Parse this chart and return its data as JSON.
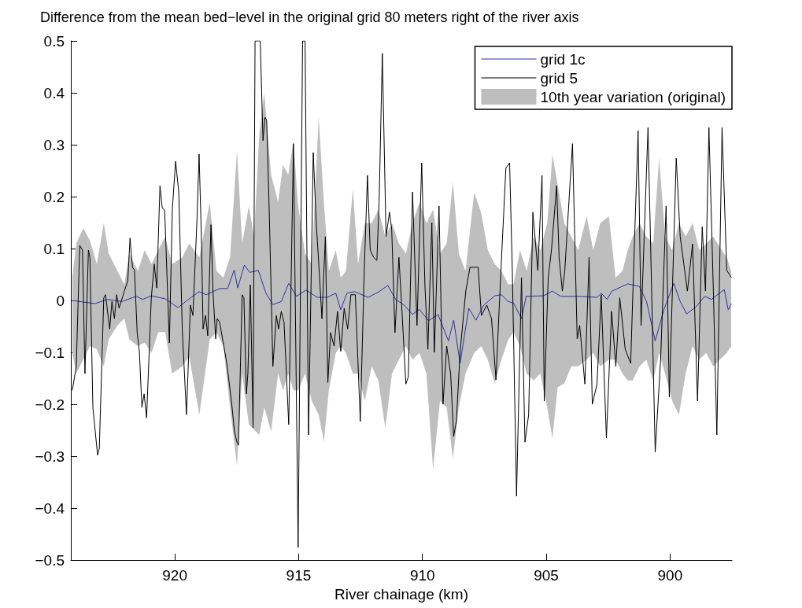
{
  "chart_data": {
    "type": "line",
    "title": "Difference from the mean bed−level in the original grid 80 meters right of the river axis",
    "xlabel": "River chainage (km)",
    "xlim": [
      924.2,
      897.5
    ],
    "xticks": [
      920,
      915,
      910,
      905,
      900
    ],
    "ylim": [
      -0.5,
      0.5
    ],
    "yticks": [
      {
        "value": -0.5,
        "label": "−0.5"
      },
      {
        "value": -0.4,
        "label": "−0.4"
      },
      {
        "value": -0.3,
        "label": "−0.3"
      },
      {
        "value": -0.2,
        "label": "−0.2"
      },
      {
        "value": -0.1,
        "label": "−0.1"
      },
      0,
      0.1,
      0.2,
      0.3,
      0.4,
      0.5
    ],
    "legend": "top right",
    "marker": "none",
    "series": [
      {
        "name": "grid 1c",
        "color": "#3030a0",
        "x": [
          924.14,
          923.71,
          923.22,
          922.73,
          922.13,
          921.56,
          921.29,
          920.95,
          920.38,
          919.87,
          919.56,
          919.02,
          918.73,
          918.19,
          917.87,
          917.6,
          917.46,
          917.19,
          916.97,
          916.63,
          916.32,
          916.04,
          915.7,
          915.4,
          915.21,
          915.09,
          914.7,
          914.25,
          913.84,
          913.5,
          913.3,
          913.05,
          912.74,
          912.19,
          911.75,
          911.4,
          911.08,
          910.74,
          910.4,
          910.13,
          909.75,
          909.37,
          908.95,
          908.74,
          908.48,
          908.13,
          907.84,
          907.52,
          907.08,
          906.81,
          906.54,
          906.32,
          906.0,
          905.81,
          905.1,
          904.76,
          904.41,
          903.71,
          902.95,
          902.78,
          902.54,
          902.35,
          901.71,
          901.24,
          900.95,
          900.6,
          900.25,
          899.85,
          899.59,
          899.33,
          898.95,
          898.6,
          898.33,
          897.81,
          897.65,
          897.52
        ],
        "values": [
          0.0,
          -0.003,
          -0.006,
          0.002,
          -0.002,
          0.008,
          0.002,
          0.009,
          0.003,
          -0.014,
          -0.002,
          0.017,
          0.011,
          0.023,
          0.023,
          0.059,
          0.024,
          0.068,
          0.054,
          0.058,
          0.014,
          -0.008,
          -0.002,
          0.033,
          0.018,
          0.008,
          0.02,
          0.006,
          0.006,
          0.014,
          -0.018,
          0.014,
          0.017,
          0.006,
          0.017,
          0.029,
          0.002,
          -0.009,
          -0.027,
          -0.017,
          -0.039,
          -0.027,
          -0.078,
          -0.038,
          -0.121,
          -0.015,
          -0.038,
          -0.009,
          0.009,
          0.011,
          -0.002,
          -0.005,
          -0.035,
          0.008,
          0.009,
          0.018,
          0.008,
          0.008,
          0.006,
          0.014,
          0.002,
          0.018,
          0.032,
          0.027,
          -0.002,
          -0.078,
          -0.018,
          0.033,
          -0.002,
          -0.026,
          -0.012,
          0.008,
          0.002,
          0.021,
          -0.018,
          -0.006
        ]
      },
      {
        "name": "grid 5",
        "color": "#000000",
        "x": [
          924.14,
          923.98,
          923.84,
          923.73,
          923.63,
          923.49,
          923.43,
          923.31,
          923.12,
          923.05,
          922.87,
          922.8,
          922.63,
          922.54,
          922.44,
          922.35,
          922.25,
          922.04,
          921.9,
          921.81,
          921.71,
          921.63,
          921.52,
          921.43,
          921.33,
          921.24,
          921.14,
          920.95,
          920.83,
          920.73,
          920.6,
          920.51,
          920.41,
          920.22,
          920.1,
          919.97,
          919.84,
          919.7,
          919.53,
          919.37,
          919.27,
          919.11,
          919.02,
          918.92,
          918.86,
          918.76,
          918.67,
          918.54,
          918.46,
          918.35,
          918.29,
          918.19,
          917.9,
          917.7,
          917.59,
          917.49,
          917.43,
          917.28,
          917.21,
          917.11,
          917.05,
          916.95,
          916.84,
          916.76,
          916.55,
          916.44,
          916.36,
          916.29,
          916.19,
          916.04,
          915.9,
          915.81,
          915.7,
          915.59,
          915.4,
          915.21,
          915.02,
          914.84,
          914.74,
          914.6,
          914.41,
          914.29,
          914.16,
          914.06,
          913.92,
          913.82,
          913.71,
          913.57,
          913.43,
          913.3,
          913.16,
          913.02,
          912.89,
          912.71,
          912.51,
          912.35,
          912.22,
          912.11,
          911.97,
          911.84,
          911.75,
          911.62,
          911.47,
          911.33,
          911.24,
          911.11,
          910.95,
          910.81,
          910.67,
          910.57,
          910.4,
          910.22,
          910.03,
          909.9,
          909.78,
          909.62,
          909.52,
          909.33,
          909.17,
          909.02,
          908.86,
          908.74,
          908.63,
          908.48,
          908.25,
          908.08,
          907.9,
          907.75,
          907.62,
          907.4,
          907.21,
          907.03,
          906.92,
          906.79,
          906.63,
          906.48,
          906.37,
          906.2,
          906.0,
          905.86,
          905.71,
          905.54,
          905.34,
          905.17,
          905.08,
          904.92,
          904.79,
          904.58,
          904.48,
          904.35,
          904.25,
          904.06,
          903.94,
          903.75,
          903.65,
          903.44,
          903.27,
          903.14,
          902.95,
          902.78,
          902.57,
          902.36,
          902.19,
          902.03,
          901.81,
          901.59,
          901.43,
          901.29,
          901.17,
          900.89,
          900.6,
          900.38,
          900.16,
          900.03,
          899.75,
          899.59,
          899.41,
          899.3,
          899.09,
          898.89,
          898.7,
          898.57,
          898.43,
          898.25,
          898.11,
          897.9,
          897.71,
          897.52
        ],
        "values": [
          -0.173,
          -0.127,
          0.106,
          0.097,
          -0.141,
          0.097,
          0.083,
          -0.206,
          -0.298,
          -0.285,
          0.005,
          0.011,
          -0.055,
          -0.002,
          -0.035,
          0.011,
          -0.015,
          0.018,
          0.038,
          0.12,
          0.064,
          0.058,
          -0.062,
          -0.1,
          -0.206,
          -0.18,
          -0.226,
          0.005,
          0.07,
          0.024,
          0.221,
          0.179,
          0.173,
          -0.082,
          0.176,
          0.268,
          0.209,
          -0.055,
          -0.22,
          -0.009,
          -0.029,
          0.15,
          0.282,
          0.109,
          -0.055,
          -0.029,
          -0.068,
          0.146,
          0.018,
          -0.074,
          -0.035,
          -0.042,
          -0.121,
          -0.2,
          -0.253,
          -0.273,
          -0.279,
          0.011,
          0.005,
          -0.18,
          -0.141,
          0.03,
          -0.245,
          0.5,
          0.5,
          0.308,
          0.353,
          0.347,
          0.176,
          -0.127,
          -0.029,
          -0.055,
          -0.021,
          -0.042,
          -0.239,
          0.302,
          -0.476,
          0.5,
          0.5,
          -0.259,
          0.285,
          0.15,
          0.05,
          -0.035,
          0.123,
          -0.158,
          -0.062,
          -0.088,
          -0.021,
          -0.098,
          -0.015,
          -0.055,
          0.011,
          0.011,
          -0.233,
          0.058,
          0.241,
          0.097,
          0.083,
          0.077,
          0.189,
          0.476,
          0.123,
          0.17,
          0.136,
          -0.062,
          0.083,
          -0.035,
          -0.161,
          -0.147,
          0.209,
          -0.048,
          0.265,
          0.03,
          -0.094,
          0.15,
          -0.1,
          0.182,
          -0.2,
          -0.088,
          -0.141,
          -0.262,
          -0.233,
          -0.1,
          0.018,
          0.064,
          0.064,
          0.064,
          -0.029,
          -0.009,
          -0.035,
          -0.153,
          -0.035,
          0.097,
          0.255,
          0.265,
          0.058,
          -0.377,
          0.044,
          -0.273,
          -0.22,
          0.17,
          0.058,
          0.241,
          -0.194,
          0.044,
          0.097,
          0.221,
          0.083,
          0.018,
          0.058,
          0.209,
          0.302,
          -0.074,
          -0.048,
          -0.161,
          0.083,
          -0.2,
          -0.161,
          0.011,
          -0.265,
          -0.021,
          -0.127,
          0.005,
          -0.094,
          -0.121,
          0.123,
          0.327,
          -0.048,
          0.333,
          -0.292,
          -0.114,
          0.182,
          -0.186,
          0.274,
          0.123,
          0.058,
          0.018,
          0.109,
          -0.194,
          0.142,
          0.018,
          0.333,
          0.018,
          -0.259,
          0.333,
          0.058,
          0.044
        ]
      },
      {
        "name": "10th year variation (original)",
        "type": "area",
        "color": "#bebebf",
        "x": [
          924.14,
          923.98,
          923.7,
          923.43,
          923.15,
          922.87,
          922.67,
          922.32,
          922.04,
          921.84,
          921.49,
          921.22,
          920.94,
          920.67,
          920.39,
          920.11,
          919.7,
          919.42,
          919.01,
          918.59,
          918.32,
          918.04,
          917.77,
          917.49,
          917.28,
          917.01,
          916.8,
          916.59,
          916.39,
          916.11,
          915.83,
          915.63,
          915.42,
          915.21,
          915.02,
          914.74,
          914.47,
          914.19,
          913.98,
          913.78,
          913.5,
          913.3,
          913.09,
          912.81,
          912.6,
          912.33,
          912.05,
          911.78,
          911.5,
          911.23,
          910.95,
          910.67,
          910.4,
          910.12,
          909.84,
          909.57,
          909.29,
          909.02,
          908.77,
          908.53,
          908.26,
          907.91,
          907.63,
          907.36,
          907.08,
          906.81,
          906.53,
          906.32,
          906.06,
          905.79,
          905.51,
          905.24,
          904.96,
          904.75,
          904.27,
          903.99,
          903.71,
          903.37,
          903.1,
          902.82,
          902.47,
          902.2,
          901.92,
          901.71,
          901.51,
          901.23,
          900.96,
          900.68,
          900.44,
          900.2,
          899.92,
          899.64,
          899.37,
          899.09,
          898.82,
          898.54,
          898.26,
          897.99,
          897.71,
          897.53
        ],
        "values": [
          0.044,
          0.11,
          0.139,
          0.116,
          0.07,
          0.149,
          0.09,
          0.057,
          0.031,
          0.09,
          0.057,
          0.097,
          0.07,
          0.097,
          0.123,
          0.07,
          0.083,
          0.11,
          0.083,
          0.189,
          0.057,
          0.044,
          0.083,
          0.288,
          0.11,
          0.182,
          0.123,
          0.32,
          0.4,
          0.242,
          0.189,
          0.261,
          0.242,
          0.307,
          0.182,
          0.09,
          0.07,
          0.353,
          0.189,
          0.057,
          0.097,
          0.044,
          0.057,
          0.215,
          0.07,
          0.149,
          0.149,
          0.175,
          0.123,
          0.149,
          0.11,
          0.09,
          0.149,
          0.189,
          0.149,
          0.175,
          0.09,
          0.11,
          0.228,
          0.09,
          0.057,
          0.208,
          0.169,
          0.097,
          0.07,
          0.057,
          0.031,
          0.031,
          0.097,
          0.057,
          0.123,
          0.097,
          0.149,
          0.281,
          0.149,
          0.123,
          0.097,
          0.162,
          0.097,
          0.149,
          0.162,
          0.044,
          0.057,
          0.097,
          0.123,
          0.149,
          0.123,
          0.11,
          0.275,
          0.123,
          0.097,
          0.149,
          0.123,
          0.149,
          0.097,
          0.11,
          0.123,
          0.103,
          0.083,
          0.057
        ]
      },
      {
        "type": "area",
        "color": "#bebebf",
        "x": [
          924.14,
          923.98,
          923.7,
          923.43,
          923.15,
          922.87,
          922.67,
          922.32,
          922.04,
          921.84,
          921.49,
          921.22,
          920.94,
          920.67,
          920.39,
          920.11,
          919.7,
          919.42,
          919.01,
          918.59,
          918.32,
          918.04,
          917.77,
          917.49,
          917.28,
          917.01,
          916.59,
          916.39,
          916.11,
          915.83,
          915.63,
          915.42,
          915.21,
          915.02,
          914.74,
          914.47,
          914.19,
          913.98,
          913.78,
          913.5,
          913.3,
          913.09,
          912.81,
          912.6,
          912.33,
          912.05,
          911.78,
          911.5,
          911.23,
          910.95,
          910.67,
          910.4,
          910.12,
          909.84,
          909.57,
          909.29,
          909.02,
          908.77,
          908.53,
          908.26,
          907.91,
          907.63,
          907.36,
          907.08,
          906.81,
          906.53,
          906.32,
          906.06,
          905.79,
          905.51,
          905.24,
          904.96,
          904.75,
          904.54,
          904.27,
          903.99,
          903.71,
          903.37,
          903.1,
          902.82,
          902.47,
          902.2,
          901.92,
          901.71,
          901.51,
          901.23,
          900.96,
          900.68,
          900.44,
          900.2,
          899.92,
          899.64,
          899.37,
          899.09,
          898.82,
          898.54,
          898.26,
          897.99,
          897.71,
          897.53
        ],
        "values": [
          -0.101,
          -0.141,
          -0.114,
          -0.088,
          -0.094,
          -0.127,
          -0.075,
          -0.048,
          -0.035,
          -0.075,
          -0.088,
          -0.081,
          -0.101,
          -0.061,
          -0.061,
          -0.141,
          -0.127,
          -0.108,
          -0.22,
          -0.075,
          -0.061,
          -0.088,
          -0.206,
          -0.318,
          -0.141,
          -0.239,
          -0.259,
          -0.206,
          -0.252,
          -0.141,
          -0.173,
          -0.141,
          -0.173,
          -0.173,
          -0.141,
          -0.193,
          -0.22,
          -0.272,
          -0.173,
          -0.101,
          -0.088,
          -0.101,
          -0.141,
          -0.141,
          -0.193,
          -0.127,
          -0.154,
          -0.246,
          -0.141,
          -0.114,
          -0.088,
          -0.114,
          -0.101,
          -0.141,
          -0.325,
          -0.193,
          -0.206,
          -0.305,
          -0.206,
          -0.141,
          -0.101,
          -0.088,
          -0.114,
          -0.16,
          -0.114,
          -0.075,
          -0.061,
          -0.088,
          -0.141,
          -0.154,
          -0.141,
          -0.206,
          -0.265,
          -0.167,
          -0.16,
          -0.127,
          -0.127,
          -0.114,
          -0.101,
          -0.127,
          -0.114,
          -0.114,
          -0.141,
          -0.154,
          -0.154,
          -0.127,
          -0.114,
          -0.154,
          -0.101,
          -0.141,
          -0.193,
          -0.22,
          -0.141,
          -0.088,
          -0.114,
          -0.101,
          -0.127,
          -0.114,
          -0.101,
          -0.088
        ]
      }
    ]
  }
}
